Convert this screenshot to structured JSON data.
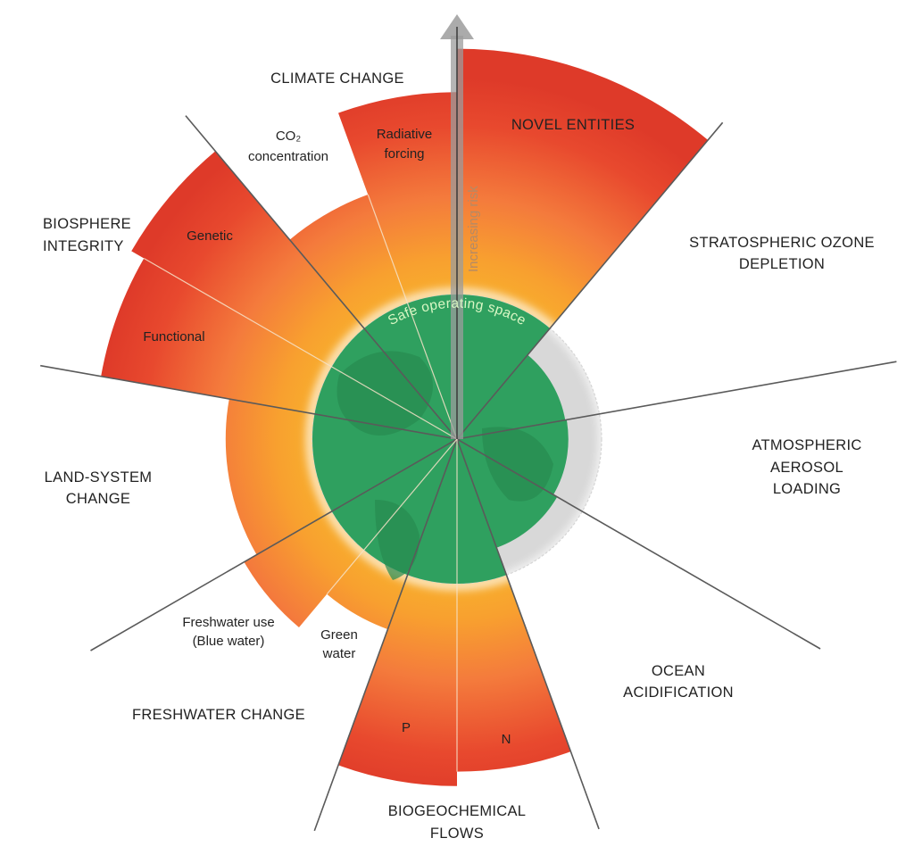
{
  "colors": {
    "safe_green": "#2fa05f",
    "safe_green_dark": "#268a50",
    "zone_yellow": "#f7a92c",
    "zone_orange": "#f47b3c",
    "zone_red": "#df3a29",
    "not_quantified_grey": "#d6d6d6",
    "divider": "#5a5a5a"
  },
  "center_labels": {
    "safe_operating_space": "Safe operating space",
    "increasing_risk": "Increasing risk"
  },
  "boundaries": [
    {
      "name": "NOVEL ENTITIES",
      "lines": [
        "NOVEL ENTITIES"
      ]
    },
    {
      "name": "STRATOSPHERIC OZONE DEPLETION",
      "lines": [
        "STRATOSPHERIC OZONE",
        "DEPLETION"
      ]
    },
    {
      "name": "ATMOSPHERIC AEROSOL LOADING",
      "lines": [
        "ATMOSPHERIC",
        "AEROSOL",
        "LOADING"
      ]
    },
    {
      "name": "OCEAN ACIDIFICATION",
      "lines": [
        "OCEAN",
        "ACIDIFICATION"
      ]
    },
    {
      "name": "BIOGEOCHEMICAL FLOWS",
      "lines": [
        "BIOGEOCHEMICAL",
        "FLOWS"
      ]
    },
    {
      "name": "FRESHWATER CHANGE",
      "lines": [
        "FRESHWATER CHANGE"
      ]
    },
    {
      "name": "LAND-SYSTEM CHANGE",
      "lines": [
        "LAND-SYSTEM",
        "CHANGE"
      ]
    },
    {
      "name": "BIOSPHERE INTEGRITY",
      "lines": [
        "BIOSPHERE",
        "INTEGRITY"
      ]
    },
    {
      "name": "CLIMATE CHANGE",
      "lines": [
        "CLIMATE CHANGE"
      ]
    }
  ],
  "segments": [
    {
      "id": "novel-entities",
      "label": [],
      "level": 2.7
    },
    {
      "id": "ozone",
      "label": [],
      "level": 0.76
    },
    {
      "id": "aerosol",
      "label": [],
      "level": 0.77
    },
    {
      "id": "ocean",
      "label": [],
      "level": 0.8
    },
    {
      "id": "phosphorus",
      "label": [
        "P"
      ],
      "level": 2.3
    },
    {
      "id": "nitrogen",
      "label": [
        "N"
      ],
      "level": 2.4
    },
    {
      "id": "green-water",
      "label": [
        "Green",
        "water"
      ],
      "level": 1.4
    },
    {
      "id": "blue-water",
      "label": [
        "Freshwater use",
        "(Blue water)"
      ],
      "level": 1.7
    },
    {
      "id": "land-system",
      "label": [],
      "level": 1.6
    },
    {
      "id": "functional",
      "label": [
        "Functional"
      ],
      "level": 2.5
    },
    {
      "id": "genetic",
      "label": [
        "Genetic"
      ],
      "level": 2.6
    },
    {
      "id": "co2",
      "label": [
        "CO₂",
        "concentration"
      ],
      "level": 1.8
    },
    {
      "id": "radiative-forcing",
      "label": [
        "Radiative",
        "forcing"
      ],
      "level": 2.4
    }
  ]
}
